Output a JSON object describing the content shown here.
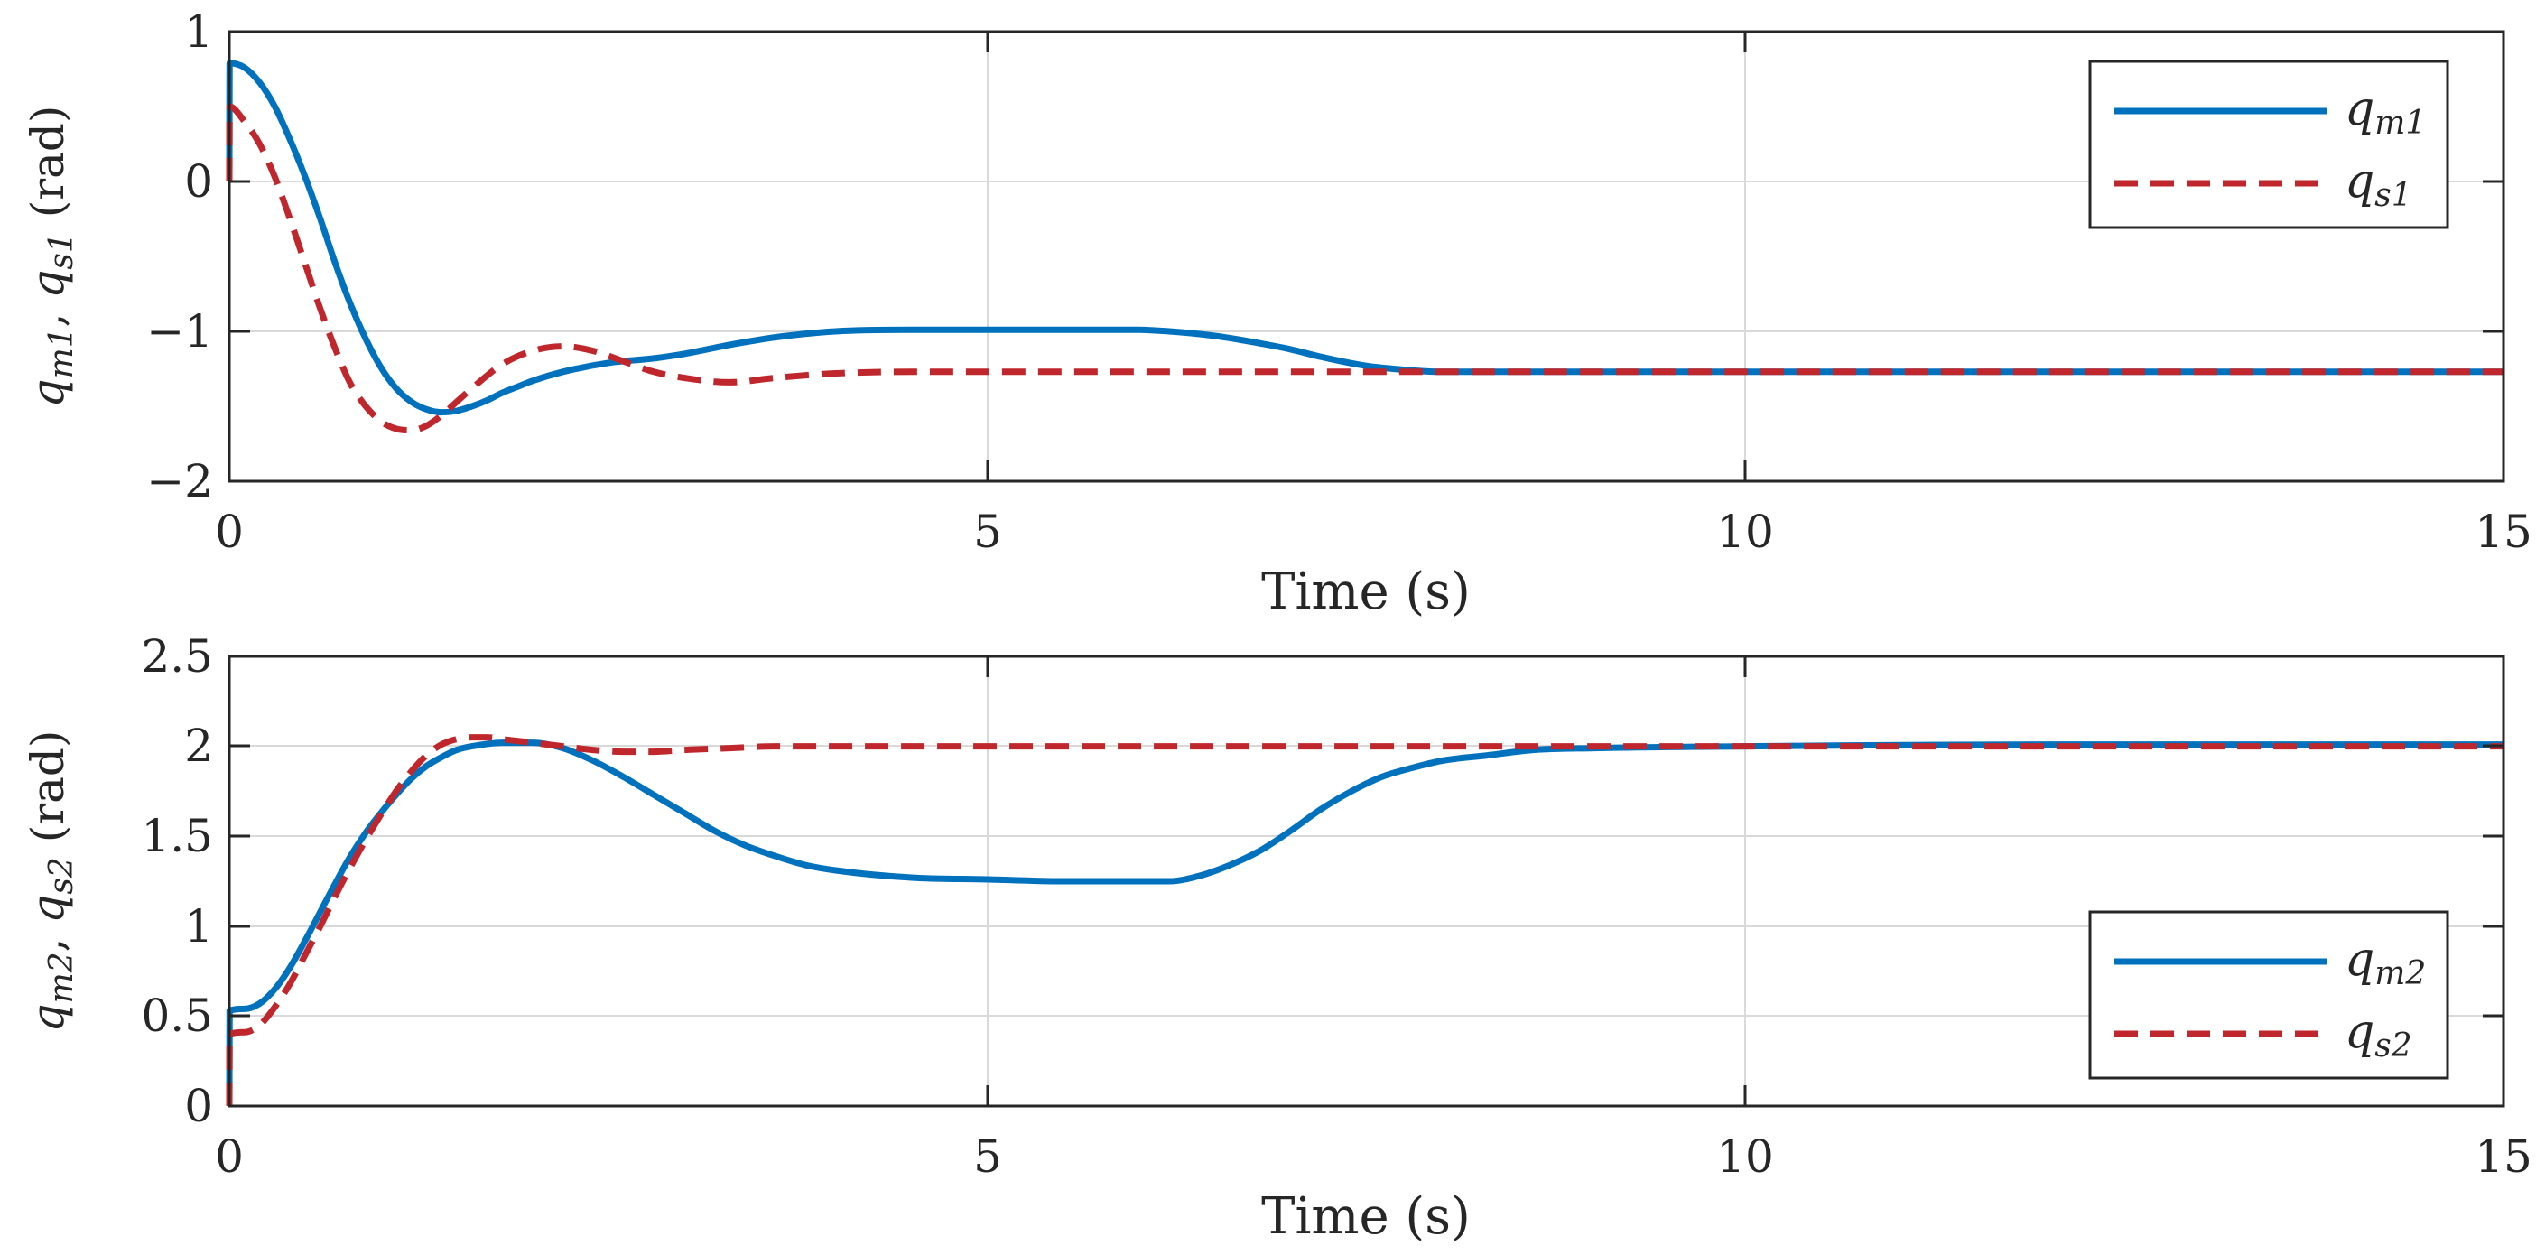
{
  "chart_data": [
    {
      "type": "line",
      "xlabel": "Time (s)",
      "ylabel": "q_m1, q_s1 (rad)",
      "ylabel_parts": {
        "var1": "q",
        "sub1": "m1",
        "sep": ", ",
        "var2": "q",
        "sub2": "s1",
        "unit": " (rad)"
      },
      "xlim": [
        0,
        15
      ],
      "ylim": [
        -2,
        1
      ],
      "xticks": [
        0,
        5,
        10,
        15
      ],
      "yticks": [
        -2,
        -1,
        0,
        1
      ],
      "xtick_labels": [
        "0",
        "5",
        "10",
        "15"
      ],
      "ytick_labels": [
        "−2",
        "−1",
        "0",
        "1"
      ],
      "grid": true,
      "legend_position": "top-right",
      "series": [
        {
          "name": "q_m1",
          "legend_var": "q",
          "legend_sub": "m1",
          "color": "#0072BD",
          "style": "solid",
          "x": [
            0,
            0.002,
            0.1,
            0.2,
            0.3,
            0.4,
            0.5,
            0.6,
            0.7,
            0.8,
            0.9,
            1.0,
            1.1,
            1.2,
            1.3,
            1.4,
            1.5,
            1.6,
            1.7,
            1.8,
            1.9,
            2.0,
            2.2,
            2.5,
            2.8,
            3.0,
            3.3,
            3.6,
            4.0,
            4.5,
            5.0,
            5.5,
            6.0,
            6.2,
            6.5,
            6.8,
            7.0,
            7.2,
            7.5,
            7.8,
            8.0,
            9.0,
            10.0,
            12.0,
            15.0
          ],
          "y": [
            0,
            0.79,
            0.76,
            0.66,
            0.5,
            0.28,
            0.03,
            -0.25,
            -0.55,
            -0.82,
            -1.05,
            -1.24,
            -1.38,
            -1.47,
            -1.52,
            -1.54,
            -1.53,
            -1.5,
            -1.46,
            -1.41,
            -1.37,
            -1.33,
            -1.27,
            -1.21,
            -1.18,
            -1.15,
            -1.09,
            -1.04,
            -1.0,
            -0.99,
            -0.99,
            -0.99,
            -0.99,
            -1.0,
            -1.03,
            -1.08,
            -1.12,
            -1.17,
            -1.23,
            -1.26,
            -1.27,
            -1.27,
            -1.27,
            -1.27,
            -1.27
          ]
        },
        {
          "name": "q_s1",
          "legend_var": "q",
          "legend_sub": "s1",
          "color": "#C0272D",
          "style": "dashed",
          "x": [
            0,
            0.002,
            0.1,
            0.2,
            0.3,
            0.4,
            0.5,
            0.6,
            0.7,
            0.8,
            0.9,
            1.0,
            1.1,
            1.2,
            1.3,
            1.4,
            1.5,
            1.6,
            1.8,
            2.0,
            2.2,
            2.4,
            2.6,
            2.8,
            3.0,
            3.3,
            3.6,
            4.0,
            4.5,
            5.0,
            6.0,
            8.0,
            10.0,
            15.0
          ],
          "y": [
            0,
            0.5,
            0.4,
            0.25,
            0.03,
            -0.25,
            -0.55,
            -0.85,
            -1.12,
            -1.35,
            -1.5,
            -1.6,
            -1.65,
            -1.66,
            -1.63,
            -1.56,
            -1.47,
            -1.38,
            -1.22,
            -1.13,
            -1.1,
            -1.13,
            -1.2,
            -1.27,
            -1.31,
            -1.34,
            -1.31,
            -1.28,
            -1.27,
            -1.27,
            -1.27,
            -1.27,
            -1.27,
            -1.27
          ]
        }
      ]
    },
    {
      "type": "line",
      "xlabel": "Time (s)",
      "ylabel": "q_m2, q_s2 (rad)",
      "ylabel_parts": {
        "var1": "q",
        "sub1": "m2",
        "sep": ", ",
        "var2": "q",
        "sub2": "s2",
        "unit": " (rad)"
      },
      "xlim": [
        0,
        15
      ],
      "ylim": [
        0,
        2.5
      ],
      "xticks": [
        0,
        5,
        10,
        15
      ],
      "yticks": [
        0,
        0.5,
        1,
        1.5,
        2,
        2.5
      ],
      "xtick_labels": [
        "0",
        "5",
        "10",
        "15"
      ],
      "ytick_labels": [
        "0",
        "0.5",
        "1",
        "1.5",
        "2",
        "2.5"
      ],
      "grid": true,
      "legend_position": "bottom-right",
      "series": [
        {
          "name": "q_m2",
          "legend_var": "q",
          "legend_sub": "m2",
          "color": "#0072BD",
          "style": "solid",
          "x": [
            0,
            0.002,
            0.1,
            0.2,
            0.3,
            0.4,
            0.5,
            0.6,
            0.7,
            0.8,
            0.9,
            1.0,
            1.1,
            1.2,
            1.3,
            1.4,
            1.5,
            1.6,
            1.8,
            2.0,
            2.2,
            2.4,
            2.6,
            2.8,
            3.0,
            3.2,
            3.4,
            3.6,
            3.8,
            4.0,
            4.5,
            5.0,
            5.5,
            6.0,
            6.2,
            6.4,
            6.6,
            6.8,
            7.0,
            7.2,
            7.4,
            7.6,
            7.8,
            8.0,
            8.3,
            8.6,
            9.0,
            10.0,
            12.0,
            15.0
          ],
          "y": [
            0,
            0.53,
            0.54,
            0.57,
            0.65,
            0.77,
            0.92,
            1.08,
            1.24,
            1.39,
            1.52,
            1.63,
            1.73,
            1.82,
            1.89,
            1.94,
            1.98,
            2.0,
            2.02,
            2.02,
            1.99,
            1.92,
            1.83,
            1.73,
            1.63,
            1.53,
            1.45,
            1.39,
            1.34,
            1.31,
            1.27,
            1.26,
            1.25,
            1.25,
            1.25,
            1.28,
            1.34,
            1.42,
            1.53,
            1.65,
            1.75,
            1.83,
            1.88,
            1.92,
            1.95,
            1.98,
            1.99,
            2.0,
            2.01,
            2.01
          ]
        },
        {
          "name": "q_s2",
          "legend_var": "q",
          "legend_sub": "s2",
          "color": "#C0272D",
          "style": "dashed",
          "x": [
            0,
            0.002,
            0.1,
            0.2,
            0.3,
            0.4,
            0.5,
            0.6,
            0.7,
            0.8,
            0.9,
            1.0,
            1.1,
            1.2,
            1.3,
            1.4,
            1.5,
            1.6,
            1.7,
            1.8,
            1.9,
            2.0,
            2.2,
            2.4,
            2.6,
            2.8,
            3.0,
            3.3,
            3.6,
            4.0,
            5.0,
            6.0,
            8.0,
            10.0,
            15.0
          ],
          "y": [
            0,
            0.4,
            0.41,
            0.45,
            0.55,
            0.68,
            0.84,
            1.0,
            1.17,
            1.33,
            1.48,
            1.62,
            1.75,
            1.86,
            1.95,
            2.01,
            2.04,
            2.05,
            2.05,
            2.04,
            2.03,
            2.02,
            2.0,
            1.98,
            1.97,
            1.97,
            1.98,
            1.99,
            2.0,
            2.0,
            2.0,
            2.0,
            2.0,
            2.0,
            2.0
          ]
        }
      ]
    }
  ]
}
